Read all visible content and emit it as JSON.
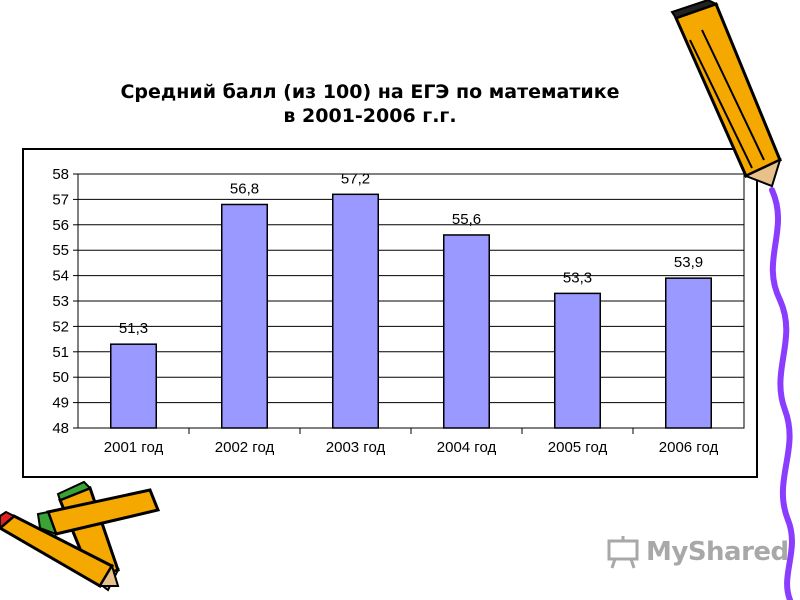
{
  "title_line1": "Средний балл (из 100) на ЕГЭ по математике",
  "title_line2": "в 2001-2006 г.г.",
  "logo_text": "MyShared",
  "colors": {
    "bar": "#9999ff",
    "bar_stroke": "#000000",
    "grid": "#000000"
  },
  "chart_data": {
    "type": "bar",
    "title": "Средний балл (из 100) на ЕГЭ по математике в 2001-2006 г.г.",
    "categories": [
      "2001 год",
      "2002 год",
      "2003 год",
      "2004 год",
      "2005 год",
      "2006 год"
    ],
    "values": [
      51.3,
      56.8,
      57.2,
      55.6,
      53.3,
      53.9
    ],
    "value_labels": [
      "51,3",
      "56,8",
      "57,2",
      "55,6",
      "53,3",
      "53,9"
    ],
    "y_ticks": [
      "48",
      "49",
      "50",
      "51",
      "52",
      "53",
      "54",
      "55",
      "56",
      "57",
      "58"
    ],
    "ylim": [
      48,
      58
    ],
    "grid": true,
    "legend": "none",
    "xlabel": "",
    "ylabel": ""
  }
}
